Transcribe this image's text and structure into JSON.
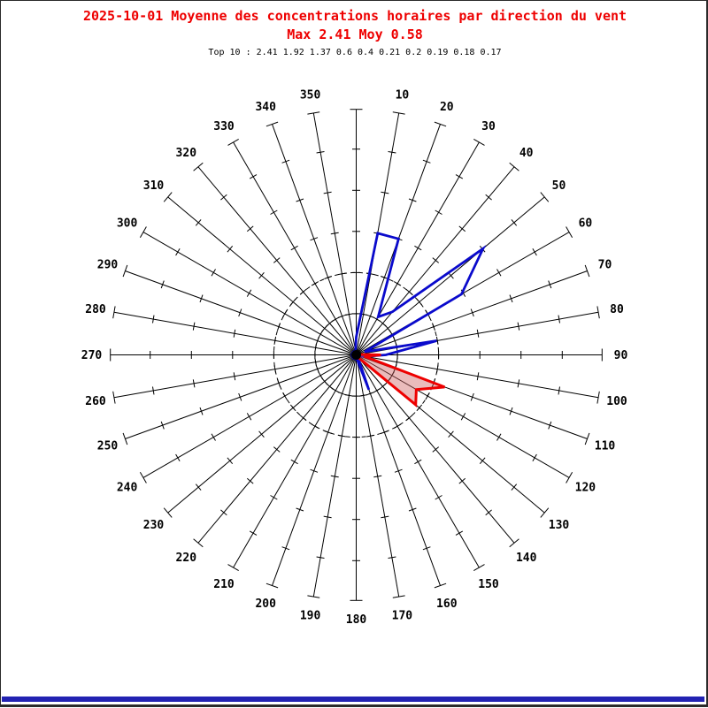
{
  "header": {
    "title": "2025-10-01 Moyenne des concentrations horaires par direction du vent",
    "subtitle": "Max 2.41 Moy 0.58",
    "top10": "Top 10 : 2.41 1.92 1.37 0.6 0.4 0.21 0.2 0.19 0.18 0.17",
    "title_color": "#ee0000"
  },
  "footer": {
    "bar_color": "#2222b2"
  },
  "chart_data": {
    "type": "radar",
    "variant": "wind-rose",
    "title": "2025-10-01 Moyenne des concentrations horaires par direction du vent",
    "stats": {
      "max": 2.41,
      "moy": 0.58
    },
    "top10_values": [
      2.41,
      1.92,
      1.37,
      0.6,
      0.4,
      0.21,
      0.2,
      0.19,
      0.18,
      0.17
    ],
    "orientation": "compass: 0 deg at top, clockwise",
    "direction_step_deg": 10,
    "direction_labels": [
      "10",
      "20",
      "30",
      "40",
      "50",
      "60",
      "70",
      "80",
      "90",
      "100",
      "110",
      "120",
      "130",
      "140",
      "150",
      "160",
      "170",
      "180",
      "190",
      "200",
      "210",
      "220",
      "230",
      "240",
      "250",
      "260",
      "270",
      "280",
      "290",
      "300",
      "310",
      "320",
      "330",
      "340",
      "350"
    ],
    "radial_axis": {
      "tick_labels_shown": false,
      "ticks_every_units": 0.6,
      "num_ticks": 5,
      "axis_end_units": 3.58,
      "dashed_circles_units": [
        0.6,
        1.2
      ]
    },
    "grid_color": "#000000",
    "series": [
      {
        "name": "blue-rose",
        "color": "#0a0acc",
        "fill": "none",
        "fill_opacity": 0,
        "default_value": 0.06,
        "values_by_direction": {
          "10": 1.8,
          "20": 1.8,
          "30": 0.64,
          "40": 0.82,
          "50": 2.41,
          "60": 1.77,
          "70": 0.13,
          "80": 1.19,
          "90": 0.43,
          "100": 0.13,
          "160": 0.54,
          "360": 0.26
        }
      },
      {
        "name": "red-rose",
        "color": "#ee0000",
        "fill": "#cc5c5c",
        "fill_opacity": 0.42,
        "default_value": 0.04,
        "values_by_direction": {
          "90": 0.36,
          "100": 0.12,
          "110": 1.37,
          "120": 1.01,
          "130": 1.13,
          "140": 0.06
        }
      }
    ]
  }
}
